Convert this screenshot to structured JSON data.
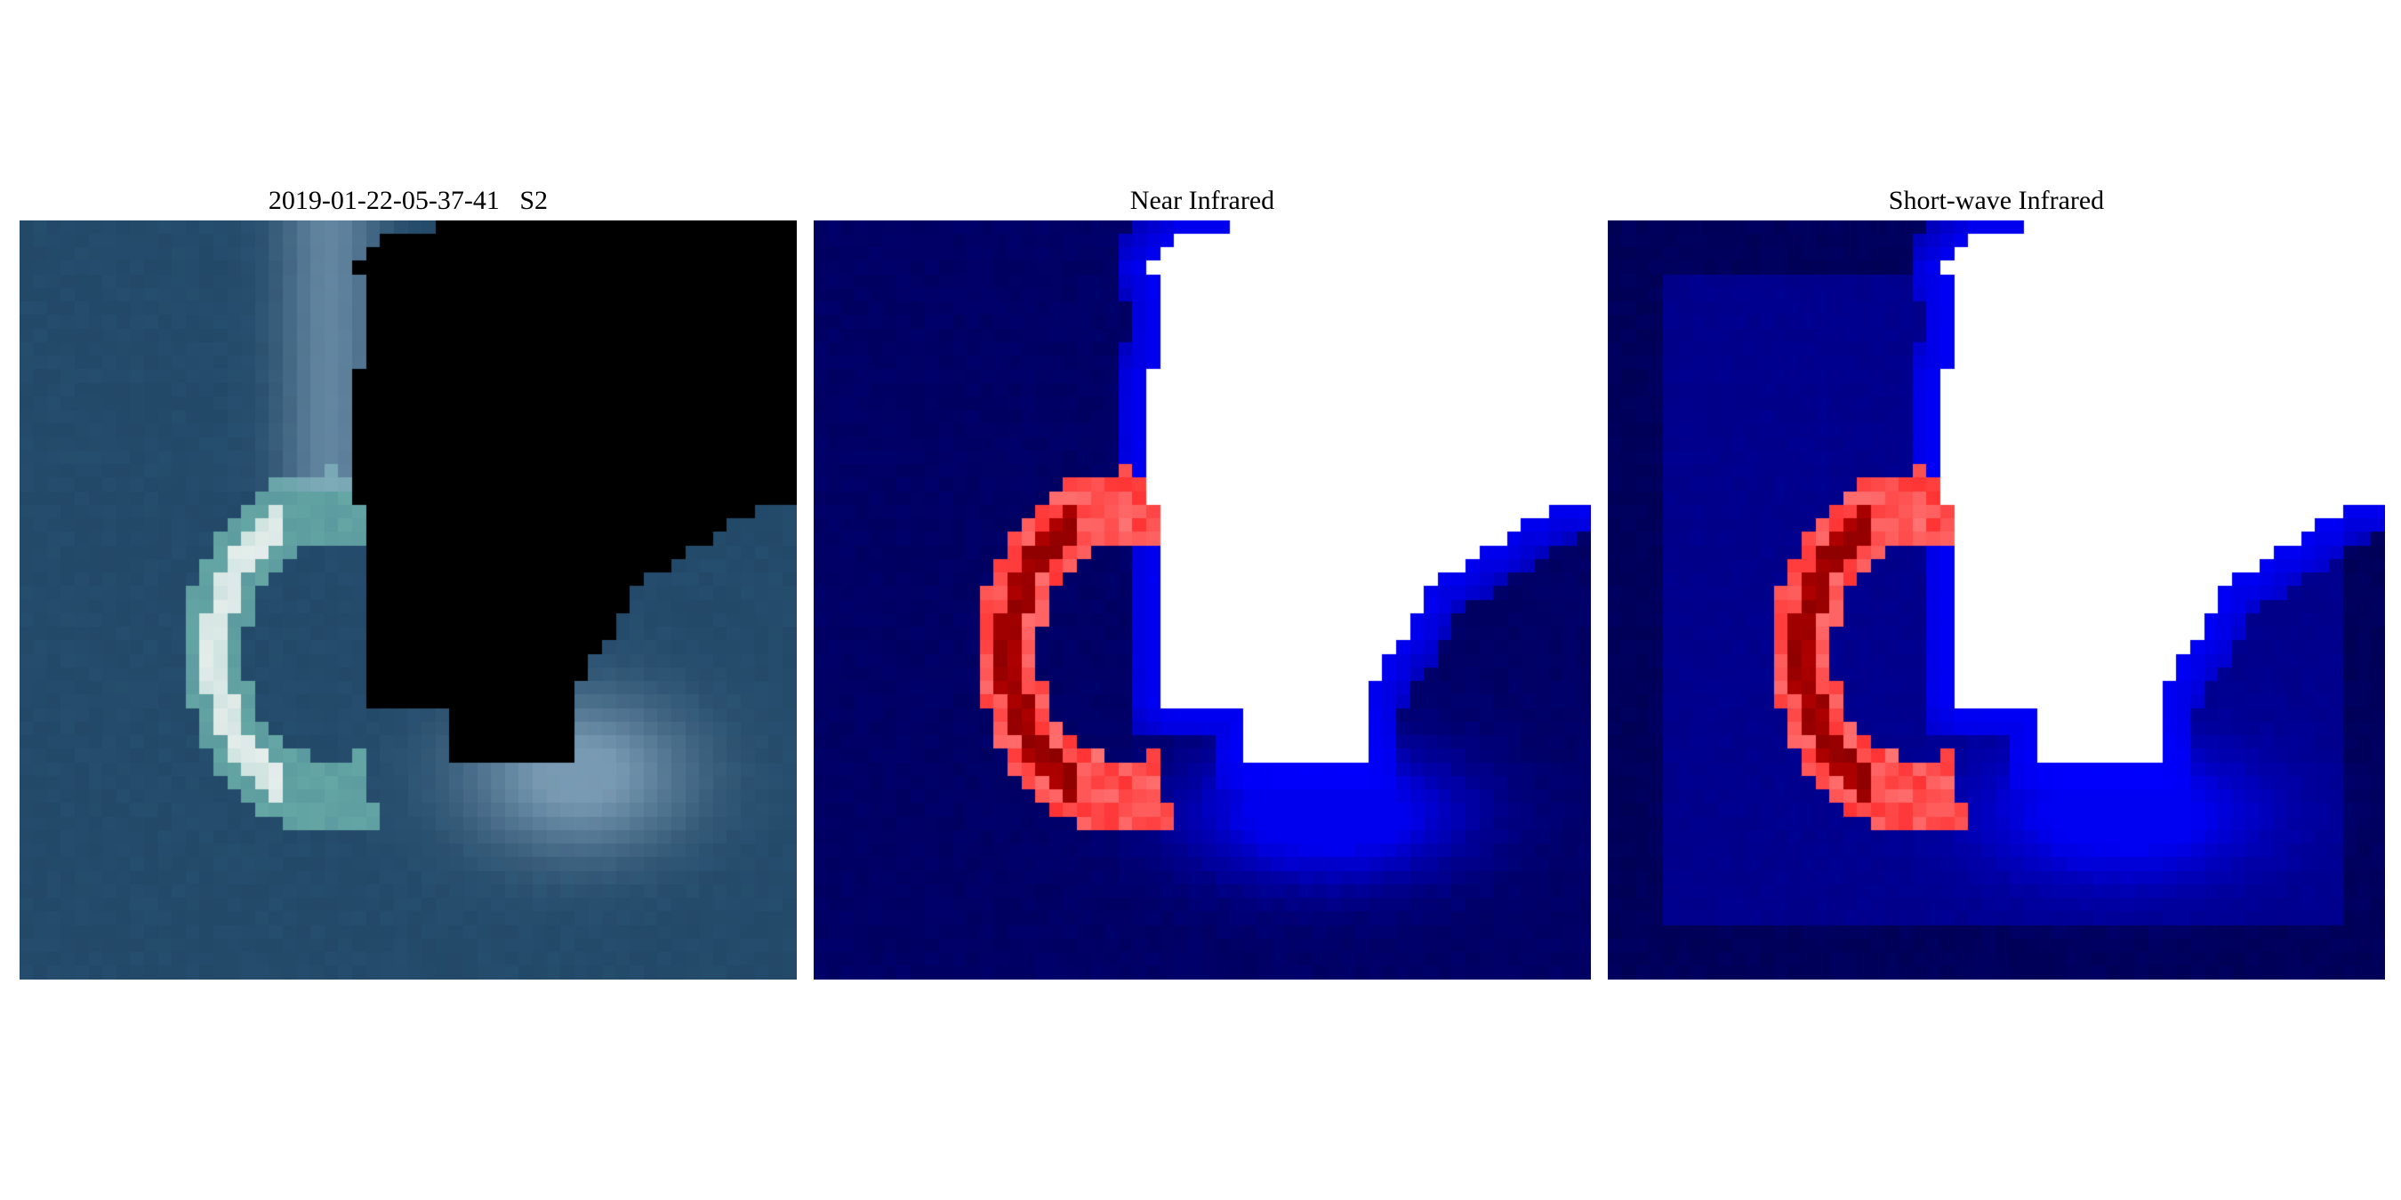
{
  "panels": [
    {
      "title": "2019-01-22-05-37-41   S2",
      "kind": "true-color",
      "colors": {
        "water_dark": "#1e3f5e",
        "water_light": "#2f5f80",
        "cloud_mask": "#000000",
        "shoal_white": "#f2f4f2",
        "shoal_teal": "#6fb4ac",
        "haze": "#8eaec4"
      }
    },
    {
      "title": "Near Infrared",
      "kind": "nir-index",
      "colors": {
        "background": "#000060",
        "mid": "#0000ff",
        "neutral": "#ffffff",
        "high": "#ff0000",
        "peak": "#7a0000"
      }
    },
    {
      "title": "Short-wave Infrared",
      "kind": "swir-index",
      "colors": {
        "background": "#000055",
        "inner": "#000088",
        "mid": "#0000ff",
        "neutral": "#ffffff",
        "high": "#ff0000",
        "peak": "#7a0000"
      }
    }
  ]
}
